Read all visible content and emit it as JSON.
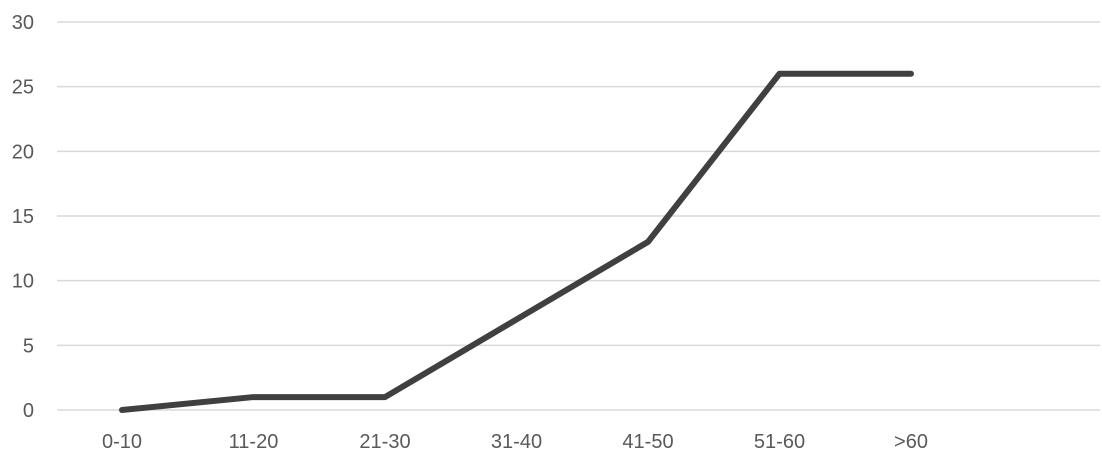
{
  "chart_data": {
    "type": "line",
    "title": "",
    "xlabel": "",
    "ylabel": "",
    "categories": [
      "0-10",
      "11-20",
      "21-30",
      "31-40",
      "41-50",
      "51-60",
      ">60"
    ],
    "series": [
      {
        "values": [
          0,
          1,
          1,
          7,
          13,
          26,
          26
        ]
      }
    ],
    "ylim": [
      0,
      30
    ],
    "yticks": [
      0,
      5,
      10,
      15,
      20,
      25,
      30
    ],
    "grid": true,
    "legend": "none",
    "colors": {
      "series": "#404040",
      "grid": "#d9d9d9",
      "text": "#595959"
    }
  }
}
